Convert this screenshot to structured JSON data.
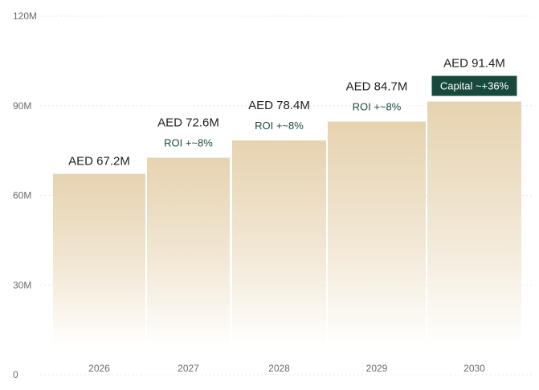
{
  "chart_data": {
    "type": "bar",
    "categories": [
      "2026",
      "2027",
      "2028",
      "2029",
      "2030"
    ],
    "values": [
      67.2,
      72.6,
      78.4,
      84.7,
      91.4
    ],
    "value_labels": [
      "AED 67.2M",
      "AED 72.6M",
      "AED 78.4M",
      "AED 84.7M",
      "AED 91.4M"
    ],
    "annotations": [
      "",
      "ROI +~8%",
      "ROI +~8%",
      "ROI +~8%",
      "Capital ~+36%"
    ],
    "yticks": [
      0,
      30,
      60,
      90,
      120
    ],
    "ytick_labels": [
      "0",
      "30M",
      "60M",
      "90M",
      "120M"
    ],
    "ylim": [
      0,
      120
    ],
    "grid": true,
    "colors": {
      "bar_top": "#e6d3b0",
      "bar_bottom": "#ffffff",
      "grid": "#ece6ef",
      "badge": "#174a3c",
      "roi_text": "#1f4a3f"
    }
  }
}
